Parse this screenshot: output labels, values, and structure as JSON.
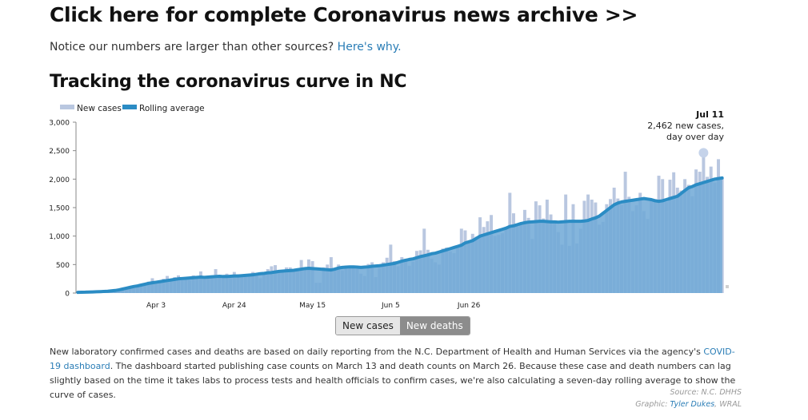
{
  "header": {
    "archive_link": "Click here for complete Coronavirus news archive >>",
    "notice_text": "Notice our numbers are larger than other sources?",
    "notice_link": "Here's why."
  },
  "chart_title": "Tracking the coronavirus curve in NC",
  "legend": {
    "new_cases": "New cases",
    "rolling_average": "Rolling average"
  },
  "tooltip": {
    "date": "Jul 11",
    "line1": "2,462 new cases,",
    "line2": "day over day",
    "value": 2462
  },
  "toggle": {
    "new_cases": "New cases",
    "new_deaths": "New deaths"
  },
  "description": {
    "text1": "New laboratory confirmed cases and deaths are based on daily reporting from the N.C. Department of Health and Human Services via the agency's ",
    "link": "COVID-19 dashboard",
    "text2": ". The dashboard started publishing case counts on March 13 and death counts on March 26. Because these case and death numbers can lag slightly based on the time it takes labs to process tests and health officials to confirm cases, we're also calculating a seven-day rolling average to show the curve of cases."
  },
  "credits": {
    "source": "Source: N.C. DHHS",
    "graphic_prefix": "Graphic: ",
    "graphic_author": "Tyler Dukes",
    "graphic_org": ", WRAL"
  },
  "colors": {
    "bar": "#b9c7e0",
    "line": "#2b8cc4",
    "area": "#6fa8d6",
    "highlight": "#c5d3ea"
  },
  "chart_data": {
    "type": "bar",
    "x_ticks": [
      "Apr 3",
      "Apr 24",
      "May 15",
      "Jun 5",
      "Jun 26"
    ],
    "y_ticks": [
      "0",
      "500",
      "1,000",
      "1,500",
      "2,000",
      "2,500",
      "3,000"
    ],
    "ylim": [
      0,
      3000
    ],
    "start_date": "Mar 13",
    "series": [
      {
        "name": "New cases",
        "values": [
          15,
          20,
          22,
          25,
          25,
          30,
          35,
          40,
          45,
          50,
          70,
          80,
          90,
          100,
          110,
          130,
          140,
          160,
          170,
          200,
          260,
          180,
          200,
          250,
          300,
          250,
          280,
          310,
          260,
          280,
          230,
          310,
          270,
          380,
          240,
          260,
          270,
          420,
          300,
          280,
          340,
          260,
          370,
          330,
          310,
          300,
          310,
          370,
          340,
          260,
          350,
          420,
          470,
          490,
          390,
          380,
          450,
          450,
          420,
          410,
          580,
          450,
          590,
          560,
          180,
          180,
          450,
          500,
          630,
          440,
          500,
          400,
          430,
          460,
          460,
          420,
          340,
          300,
          510,
          540,
          280,
          440,
          540,
          620,
          850,
          560,
          470,
          630,
          600,
          480,
          550,
          740,
          750,
          1130,
          760,
          600,
          540,
          500,
          780,
          800,
          730,
          700,
          840,
          1130,
          1100,
          870,
          1040,
          990,
          1330,
          1160,
          1260,
          1370,
          1000,
          1020,
          1050,
          1150,
          1760,
          1400,
          1170,
          1190,
          1460,
          1320,
          950,
          1610,
          1540,
          1310,
          1640,
          1380,
          1250,
          1070,
          850,
          1730,
          830,
          1560,
          870,
          1130,
          1620,
          1730,
          1640,
          1590,
          1200,
          1250,
          1560,
          1650,
          1850,
          1660,
          1550,
          2130,
          1690,
          1440,
          1540,
          1760,
          1440,
          1300,
          1620,
          1650,
          2060,
          2000,
          1600,
          1990,
          2120,
          1850,
          1800,
          2000,
          1900,
          1700,
          2170,
          2130,
          2462,
          2040,
          2220,
          1940,
          2350,
          2000
        ]
      },
      {
        "name": "Rolling average",
        "values": [
          12,
          14,
          15,
          18,
          20,
          22,
          25,
          28,
          32,
          38,
          45,
          55,
          70,
          85,
          100,
          115,
          125,
          140,
          155,
          170,
          180,
          190,
          200,
          210,
          220,
          230,
          240,
          250,
          255,
          260,
          265,
          270,
          275,
          280,
          275,
          280,
          285,
          290,
          295,
          290,
          290,
          295,
          300,
          300,
          305,
          310,
          315,
          320,
          330,
          340,
          345,
          355,
          360,
          370,
          380,
          385,
          390,
          395,
          400,
          410,
          420,
          430,
          435,
          430,
          425,
          420,
          415,
          410,
          405,
          420,
          440,
          450,
          455,
          460,
          460,
          455,
          450,
          455,
          460,
          470,
          475,
          480,
          490,
          500,
          510,
          520,
          540,
          560,
          575,
          590,
          600,
          620,
          640,
          655,
          670,
          690,
          700,
          720,
          740,
          760,
          780,
          800,
          820,
          840,
          880,
          900,
          920,
          960,
          1000,
          1020,
          1040,
          1060,
          1080,
          1100,
          1120,
          1140,
          1170,
          1180,
          1200,
          1220,
          1235,
          1245,
          1250,
          1255,
          1260,
          1260,
          1255,
          1250,
          1250,
          1245,
          1250,
          1255,
          1260,
          1260,
          1260,
          1260,
          1265,
          1275,
          1300,
          1320,
          1350,
          1400,
          1450,
          1500,
          1550,
          1580,
          1600,
          1610,
          1620,
          1630,
          1640,
          1650,
          1660,
          1650,
          1640,
          1620,
          1610,
          1620,
          1640,
          1660,
          1680,
          1700,
          1750,
          1800,
          1850,
          1870,
          1900,
          1920,
          1940,
          1960,
          1980,
          2000,
          2010,
          2020
        ]
      }
    ]
  }
}
